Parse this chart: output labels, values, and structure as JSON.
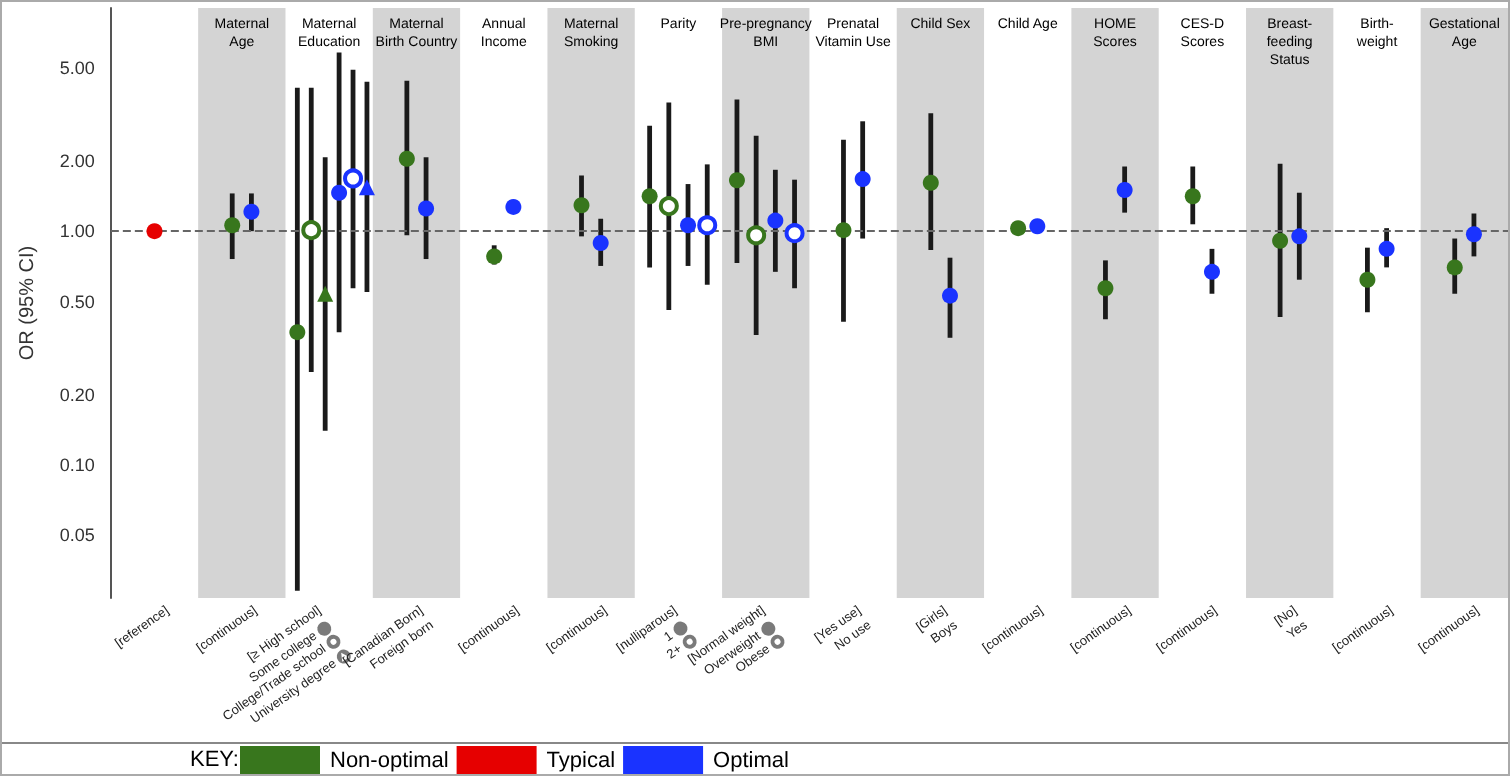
{
  "chart_data": {
    "type": "scatter",
    "ylabel": "OR (95% CI)",
    "log": "y",
    "ylim": [
      0.027,
      9
    ],
    "yticks": [
      {
        "value": 0.05,
        "label": "0.05"
      },
      {
        "value": 0.1,
        "label": "0.10"
      },
      {
        "value": 0.2,
        "label": "0.20"
      },
      {
        "value": 0.5,
        "label": "0.50"
      },
      {
        "value": 1,
        "label": "1.00"
      },
      {
        "value": 2,
        "label": "2.00"
      },
      {
        "value": 5,
        "label": "5.00"
      }
    ],
    "categories": [
      null,
      "Maternal\nAge",
      "Maternal\nEducation",
      "Maternal\nBirth Country",
      "Annual\nIncome",
      "Maternal\nSmoking",
      "Parity",
      "Pre-pregnancy\nBMI",
      "Prenatal\nVitamin Use",
      "Child Sex",
      "Child Age",
      "HOME\nScores",
      "CES-D\nScores",
      "Breast-\nfeeding\nStatus",
      "Birth-\nweight",
      "Gestational\nAge"
    ],
    "legend": "bottom",
    "legend_title": "KEY:",
    "ref_lines": [
      {
        "axis": "y",
        "value": 1,
        "label": null,
        "color": "#666666",
        "line_style": "dashed"
      }
    ],
    "bands": [
      {
        "axis": "x",
        "from": "Maternal\nAge",
        "to": "Maternal\nAge",
        "label": null,
        "color": "#d4d4d4"
      },
      {
        "axis": "x",
        "from": "Maternal\nBirth Country",
        "to": "Maternal\nBirth Country",
        "label": null,
        "color": "#d4d4d4"
      },
      {
        "axis": "x",
        "from": "Maternal\nSmoking",
        "to": "Maternal\nSmoking",
        "label": null,
        "color": "#d4d4d4"
      },
      {
        "axis": "x",
        "from": "Pre-pregnancy\nBMI",
        "to": "Pre-pregnancy\nBMI",
        "label": null,
        "color": "#d4d4d4"
      },
      {
        "axis": "x",
        "from": "Child Sex",
        "to": "Child Sex",
        "label": null,
        "color": "#d4d4d4"
      },
      {
        "axis": "x",
        "from": "HOME\nScores",
        "to": "HOME\nScores",
        "label": null,
        "color": "#d4d4d4"
      },
      {
        "axis": "x",
        "from": "Breast-\nfeeding\nStatus",
        "to": "Breast-\nfeeding\nStatus",
        "label": null,
        "color": "#d4d4d4"
      },
      {
        "axis": "x",
        "from": "Gestational\nAge",
        "to": "Gestational\nAge",
        "label": null,
        "color": "#d4d4d4"
      }
    ],
    "annotations": [
      "[reference]",
      "[continuous]",
      "[≥ High school]\nSome college\nCollege/Trade school\nUniversity degree",
      "[Canadian Born]\nForeign born",
      "[continuous]",
      "[continuous]",
      "[nulliparous]\n1\n2+",
      "[Normal weight]\nOverweight\nObese",
      "[Yes use]\nNo use",
      "[Girls]\nBoys",
      "[continuous]",
      "[continuous]",
      "[continuous]",
      "[No]\nYes",
      "[continuous]",
      "[continuous]"
    ],
    "series": [
      {
        "name": "Non-optimal",
        "color": "#38761d",
        "marker": "circle",
        "values": [
          null,
          1.06,
          0.37,
          2.04,
          0.78,
          1.29,
          1.41,
          1.65,
          1.01,
          1.61,
          1.03,
          0.57,
          1.41,
          0.91,
          0.62,
          0.7
        ],
        "errors": [
          null,
          [
            0.76,
            1.45
          ],
          [
            0.029,
            4.1
          ],
          [
            0.96,
            4.4
          ],
          [
            0.72,
            0.87
          ],
          [
            0.95,
            1.73
          ],
          [
            0.7,
            2.82
          ],
          [
            0.73,
            3.66
          ],
          [
            0.41,
            2.46
          ],
          [
            0.83,
            3.19
          ],
          null,
          [
            0.42,
            0.75
          ],
          [
            1.07,
            1.89
          ],
          [
            0.43,
            1.94
          ],
          [
            0.45,
            0.85
          ],
          [
            0.54,
            0.93
          ]
        ]
      },
      {
        "color": "#38761d",
        "values": [
          null,
          null,
          1.01,
          null,
          null,
          null,
          1.28,
          0.96,
          null,
          null,
          null,
          null,
          null,
          null,
          null,
          null
        ],
        "errors": [
          null,
          null,
          [
            0.25,
            4.1
          ],
          null,
          null,
          null,
          [
            0.46,
            3.55
          ],
          [
            0.36,
            2.56
          ],
          null,
          null,
          null,
          null,
          null,
          null,
          null,
          null
        ]
      },
      {
        "color": "#38761d",
        "marker": "triangle",
        "values": [
          null,
          null,
          0.54,
          null,
          null,
          null,
          null,
          null,
          null,
          null,
          null,
          null,
          null,
          null,
          null,
          null
        ],
        "errors": [
          null,
          null,
          [
            0.14,
            2.07
          ],
          null,
          null,
          null,
          null,
          null,
          null,
          null,
          null,
          null,
          null,
          null,
          null,
          null
        ]
      },
      {
        "name": "Typical",
        "color": "#e60000",
        "marker": "circle",
        "values": [
          1.0,
          null,
          null,
          null,
          null,
          null,
          null,
          null,
          null,
          null,
          null,
          null,
          null,
          null,
          null,
          null
        ]
      },
      {
        "name": "Optimal",
        "color": "#1a33ff",
        "marker": "circle",
        "values": [
          null,
          1.21,
          1.46,
          1.25,
          1.27,
          0.89,
          1.06,
          1.11,
          1.67,
          0.53,
          1.05,
          1.5,
          0.67,
          0.95,
          0.84,
          0.97
        ],
        "errors": [
          null,
          [
            1.0,
            1.45
          ],
          [
            0.37,
            5.8
          ],
          [
            0.76,
            2.07
          ],
          null,
          [
            0.71,
            1.13
          ],
          [
            0.71,
            1.59
          ],
          [
            0.67,
            1.83
          ],
          [
            0.93,
            2.95
          ],
          [
            0.35,
            0.77
          ],
          null,
          [
            1.2,
            1.89
          ],
          [
            0.54,
            0.84
          ],
          [
            0.62,
            1.46
          ],
          [
            0.7,
            1.03
          ],
          [
            0.78,
            1.19
          ]
        ]
      },
      {
        "color": "#1a33ff",
        "values": [
          null,
          null,
          1.68,
          null,
          null,
          null,
          1.06,
          0.98,
          null,
          null,
          null,
          null,
          null,
          null,
          null,
          null
        ],
        "errors": [
          null,
          null,
          [
            0.57,
            4.9
          ],
          null,
          null,
          null,
          [
            0.59,
            1.93
          ],
          [
            0.57,
            1.66
          ],
          null,
          null,
          null,
          null,
          null,
          null,
          null,
          null
        ]
      },
      {
        "color": "#1a33ff",
        "marker": "triangle",
        "values": [
          null,
          null,
          1.54,
          null,
          null,
          null,
          null,
          null,
          null,
          null,
          null,
          null,
          null,
          null,
          null,
          null
        ],
        "errors": [
          null,
          null,
          [
            0.55,
            4.35
          ],
          null,
          null,
          null,
          null,
          null,
          null,
          null,
          null,
          null,
          null,
          null,
          null,
          null
        ]
      }
    ]
  }
}
